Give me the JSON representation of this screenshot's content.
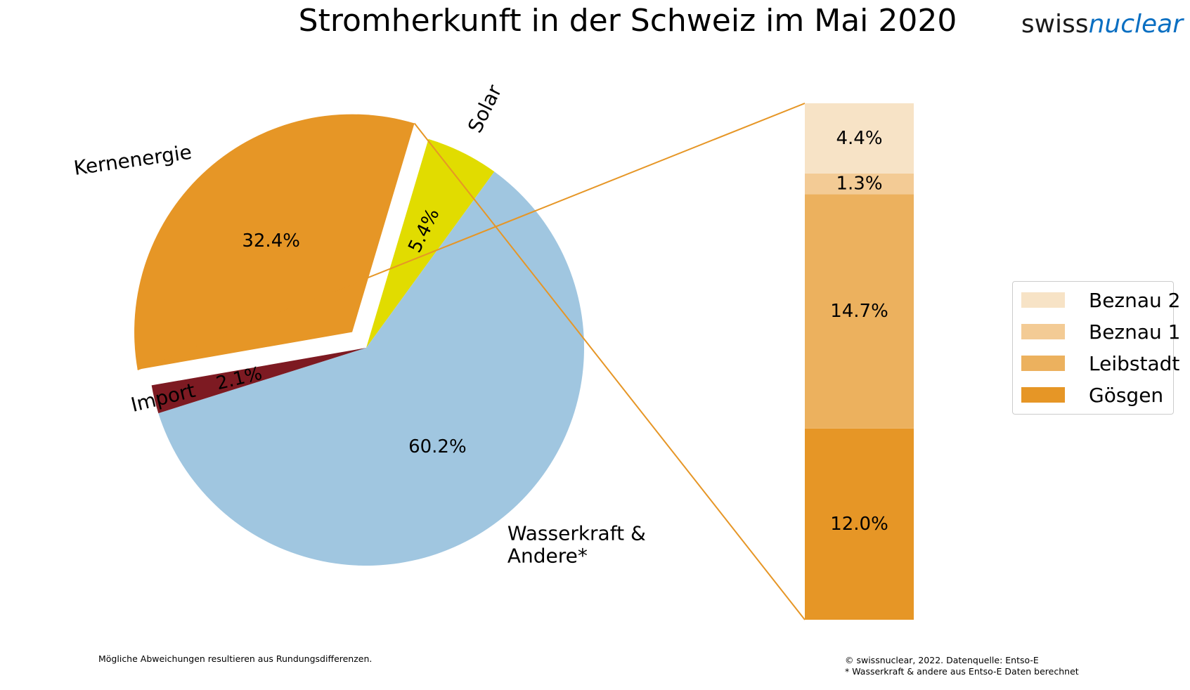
{
  "header": {
    "title": "Stromherkunft in der Schweiz im Mai 2020",
    "logo_part1": "swiss",
    "logo_part2": "nuclear"
  },
  "chart_data": [
    {
      "type": "pie",
      "slices": [
        {
          "label": "Solar",
          "value": 5.4,
          "value_label": "5.4%",
          "color": "#e1dc00",
          "exploded": false
        },
        {
          "label": "Wasserkraft & Andere*",
          "value": 60.2,
          "value_label": "60.2%",
          "color": "#a0c6e0",
          "exploded": false
        },
        {
          "label": "Import",
          "value": 2.1,
          "value_label": "2.1%",
          "color": "#7d1a22",
          "exploded": false
        },
        {
          "label": "Kernenergie",
          "value": 32.4,
          "value_label": "32.4%",
          "color": "#e69626",
          "exploded": true
        }
      ]
    },
    {
      "type": "bar",
      "stacked": true,
      "segments": [
        {
          "name": "Gösgen",
          "value": 12.0,
          "value_label": "12.0%",
          "color": "#e69626"
        },
        {
          "name": "Leibstadt",
          "value": 14.7,
          "value_label": "14.7%",
          "color": "#ecb15e"
        },
        {
          "name": "Beznau 1",
          "value": 1.3,
          "value_label": "1.3%",
          "color": "#f3cb95"
        },
        {
          "name": "Beznau 2",
          "value": 4.4,
          "value_label": "4.4%",
          "color": "#f7e3c6"
        }
      ],
      "legend": {
        "placement": "right",
        "items": [
          "Beznau 2",
          "Beznau 1",
          "Leibstadt",
          "Gösgen"
        ]
      }
    }
  ],
  "footer": {
    "note_left": "Mögliche Abweichungen resultieren aus Rundungsdifferenzen.",
    "source_line1": "© swissnuclear, 2022. Datenquelle: Entso-E",
    "source_line2": "* Wasserkraft & andere aus Entso-E Daten berechnet"
  }
}
